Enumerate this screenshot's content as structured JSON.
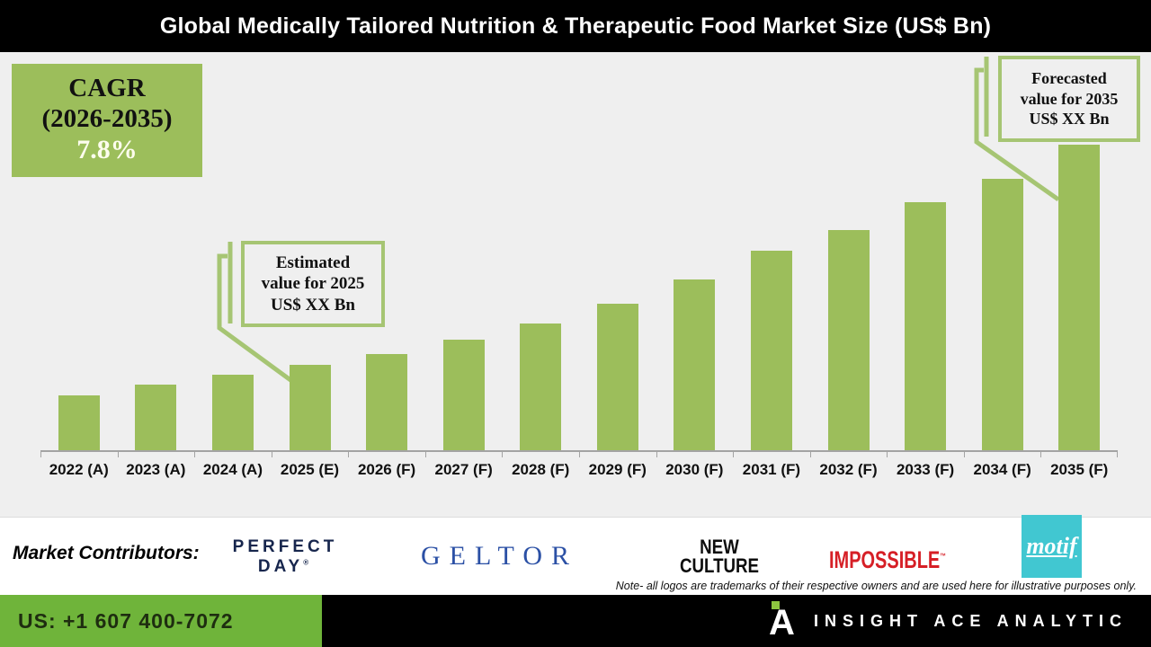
{
  "title_bar": {
    "title": "Global Medically Tailored Nutrition & Therapeutic Food Market Size (US$ Bn)"
  },
  "cagr_box": {
    "line1": "CAGR",
    "line2": "(2026-2035)",
    "line3": "7.8%"
  },
  "callouts": {
    "estimated": {
      "line1": "Estimated",
      "line2": "value for 2025",
      "line3": "US$ XX Bn"
    },
    "forecasted": {
      "line1": "Forecasted",
      "line2": "value for 2035",
      "line3": "US$ XX Bn"
    }
  },
  "chart_data": {
    "type": "bar",
    "title": "Global Medically Tailored Nutrition & Therapeutic Food Market Size (US$ Bn)",
    "categories": [
      "2022 (A)",
      "2023 (A)",
      "2024 (A)",
      "2025 (E)",
      "2026 (F)",
      "2027 (F)",
      "2028 (F)",
      "2029 (F)",
      "2030 (F)",
      "2031 (F)",
      "2032 (F)",
      "2033 (F)",
      "2034 (F)",
      "2035 (F)"
    ],
    "values_hidden": "numeric values shown only as US$ XX Bn placeholders; bar heights are relative",
    "relative_values": [
      61,
      73,
      84,
      95,
      107,
      123,
      141,
      163,
      190,
      222,
      245,
      276,
      302,
      340
    ],
    "cagr": "7.8%",
    "cagr_period": "2026-2035",
    "xlabel": "",
    "ylabel": "",
    "grid": false,
    "legend": false,
    "bar_color": "#9cbe5b"
  },
  "contributors": {
    "label": "Market Contributors:",
    "logos": [
      {
        "name": "Perfect Day",
        "text1": "PERFECT",
        "text2": "DAY"
      },
      {
        "name": "Geltor",
        "text": "GELTOR"
      },
      {
        "name": "New Culture",
        "text1": "NEW",
        "text2": "CULTURE"
      },
      {
        "name": "Impossible",
        "text": "IMPOSSIBLE"
      },
      {
        "name": "Motif",
        "text": "motif"
      }
    ],
    "note": "Note- all logos are trademarks of their respective owners and are used here for illustrative purposes only."
  },
  "footer": {
    "phone": "US: +1 607 400-7072",
    "brand": "INSIGHT ACE ANALYTIC",
    "brand_initial": "A"
  },
  "colors": {
    "bar_green": "#9cbe5b",
    "callout_green": "#a6c573",
    "footer_green": "#6fb43a",
    "brand_dot_green": "#8dc63f",
    "chart_background": "#efefef",
    "title_background": "#000000",
    "perfect_day_navy": "#17264d",
    "geltor_blue": "#2b50a5",
    "impossible_red": "#d61f26",
    "motif_teal": "#41c7d1"
  }
}
